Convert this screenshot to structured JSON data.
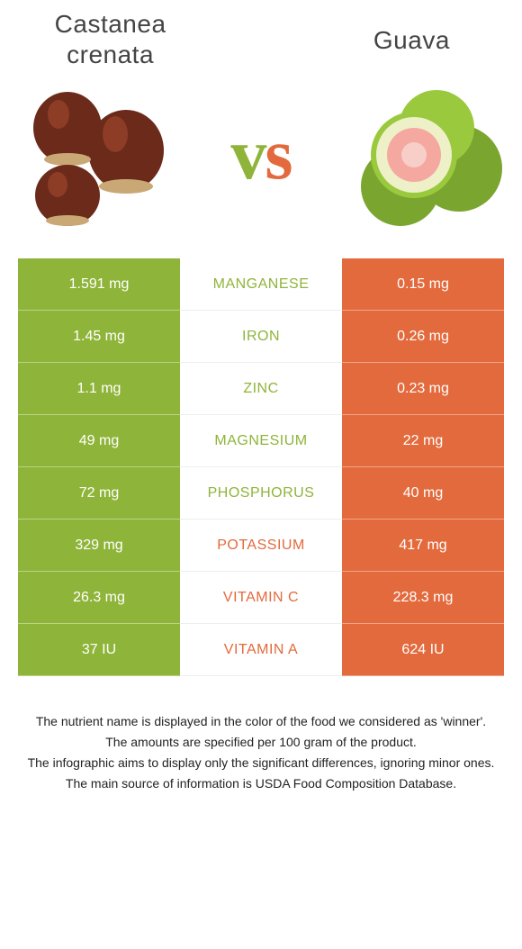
{
  "header": {
    "left_title": "Castanea crenata",
    "right_title": "Guava",
    "vs_v": "v",
    "vs_s": "s"
  },
  "colors": {
    "left": "#8fb43a",
    "right": "#e36a3d"
  },
  "rows": [
    {
      "nutrient": "Manganese",
      "left": "1.591 mg",
      "right": "0.15 mg",
      "winner": "left"
    },
    {
      "nutrient": "Iron",
      "left": "1.45 mg",
      "right": "0.26 mg",
      "winner": "left"
    },
    {
      "nutrient": "Zinc",
      "left": "1.1 mg",
      "right": "0.23 mg",
      "winner": "left"
    },
    {
      "nutrient": "Magnesium",
      "left": "49 mg",
      "right": "22 mg",
      "winner": "left"
    },
    {
      "nutrient": "Phosphorus",
      "left": "72 mg",
      "right": "40 mg",
      "winner": "left"
    },
    {
      "nutrient": "Potassium",
      "left": "329 mg",
      "right": "417 mg",
      "winner": "right"
    },
    {
      "nutrient": "Vitamin C",
      "left": "26.3 mg",
      "right": "228.3 mg",
      "winner": "right"
    },
    {
      "nutrient": "Vitamin A",
      "left": "37 IU",
      "right": "624 IU",
      "winner": "right"
    }
  ],
  "footer": {
    "line1": "The nutrient name is displayed in the color of the food we considered as 'winner'.",
    "line2": "The amounts are specified per 100 gram of the product.",
    "line3": "The infographic aims to display only the significant differences, ignoring minor ones.",
    "line4": "The main source of information is USDA Food Composition Database."
  }
}
